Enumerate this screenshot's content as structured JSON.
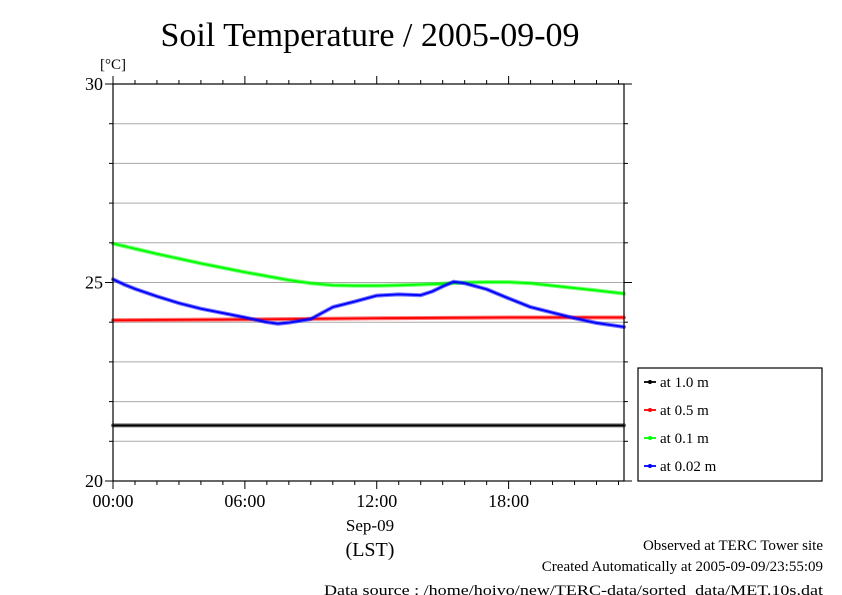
{
  "chart_data": {
    "type": "line",
    "title": "Soil Temperature / 2005-09-09",
    "ylabel": "[°C]",
    "ylim": [
      20,
      30
    ],
    "y_ticks": [
      20,
      25,
      30
    ],
    "y_tick_labels": [
      "20",
      "25",
      "30"
    ],
    "xlim": [
      0,
      23.25
    ],
    "x_ticks": [
      0,
      6,
      12,
      18
    ],
    "x_tick_labels": [
      "00:00",
      "06:00",
      "12:00",
      "18:00"
    ],
    "x_date_label": "Sep-09",
    "x_unit_label": "(LST)",
    "grid": true,
    "legend_position": "right",
    "series": [
      {
        "name": "at 1.0 m",
        "color": "#000000",
        "x": [
          0,
          23.25
        ],
        "y": [
          21.4,
          21.4
        ]
      },
      {
        "name": "at 0.5 m",
        "color": "#ff0000",
        "x": [
          0,
          6,
          12,
          18,
          23.25
        ],
        "y": [
          24.05,
          24.07,
          24.1,
          24.12,
          24.12
        ]
      },
      {
        "name": "at 0.1 m",
        "color": "#00ff00",
        "x": [
          0,
          1,
          2,
          3,
          4,
          5,
          6,
          7,
          8,
          9,
          10,
          11,
          12,
          13,
          14,
          15,
          16,
          17,
          18,
          19,
          20,
          21,
          22,
          23.25
        ],
        "y": [
          25.98,
          25.85,
          25.72,
          25.6,
          25.48,
          25.37,
          25.26,
          25.16,
          25.06,
          24.98,
          24.93,
          24.92,
          24.92,
          24.93,
          24.95,
          24.97,
          25.0,
          25.01,
          25.01,
          24.98,
          24.92,
          24.86,
          24.8,
          24.72
        ]
      },
      {
        "name": "at 0.02 m",
        "color": "#0000ff",
        "x": [
          0,
          0.5,
          1,
          2,
          3,
          4,
          5,
          6,
          7,
          7.5,
          8,
          9,
          10,
          11,
          12,
          13,
          14,
          14.5,
          15,
          15.5,
          16,
          17,
          18,
          19,
          20,
          21,
          22,
          23,
          23.25
        ],
        "y": [
          25.08,
          24.95,
          24.84,
          24.65,
          24.48,
          24.34,
          24.23,
          24.12,
          24.0,
          23.96,
          23.99,
          24.08,
          24.38,
          24.52,
          24.67,
          24.7,
          24.68,
          24.77,
          24.9,
          25.02,
          24.98,
          24.83,
          24.6,
          24.38,
          24.24,
          24.1,
          23.98,
          23.9,
          23.88
        ]
      }
    ],
    "annotations": [
      "Observed at TERC Tower site",
      "Created Automatically at 2005-09-09/23:55:09",
      "Data source : /home/hoivo/new/TERC-data/sorted_data/MET.10s.dat"
    ]
  }
}
